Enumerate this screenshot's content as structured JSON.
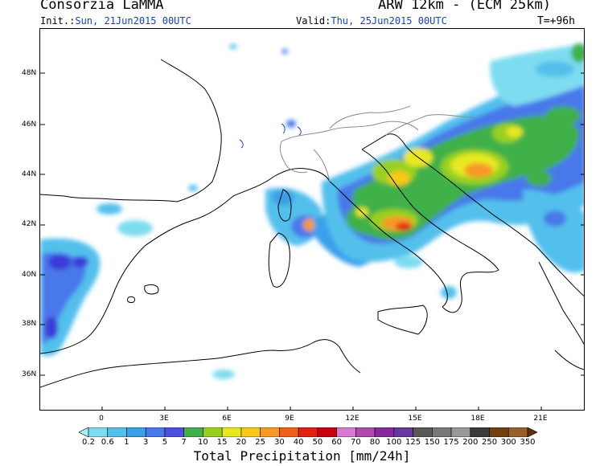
{
  "header": {
    "title": "Consorzia LaMMA",
    "model": "ARW 12km - (ECM 25km)",
    "init_label": "Init.:",
    "init_value": "Sun, 21Jun2015 00UTC",
    "valid_label": "Valid:",
    "valid_value": "Thu, 25Jun2015 00UTC",
    "time_step": "T=+96h"
  },
  "map": {
    "lat_labels": [
      "48N",
      "46N",
      "44N",
      "42N",
      "40N",
      "38N",
      "36N"
    ],
    "lon_labels": [
      "0",
      "3E",
      "6E",
      "9E",
      "12E",
      "15E",
      "18E",
      "21E"
    ]
  },
  "colorbar": {
    "title": "Total Precipitation [mm/24h]",
    "levels": [
      "0.2",
      "0.6",
      "1",
      "3",
      "5",
      "7",
      "10",
      "15",
      "20",
      "25",
      "30",
      "40",
      "50",
      "60",
      "70",
      "80",
      "100",
      "125",
      "150",
      "175",
      "200",
      "250",
      "300",
      "350"
    ],
    "colors": [
      "#a8f0f8",
      "#7edcf0",
      "#52c0ec",
      "#3aa0ea",
      "#4878ea",
      "#5050e0",
      "#40b048",
      "#98d020",
      "#e8e820",
      "#f8c818",
      "#f89828",
      "#f06018",
      "#e02010",
      "#c80010",
      "#d878d0",
      "#b048b0",
      "#8828a0",
      "#6838a0",
      "#585858",
      "#787878",
      "#989898",
      "#3a3a3a",
      "#704010",
      "#986028",
      "#603010"
    ]
  }
}
